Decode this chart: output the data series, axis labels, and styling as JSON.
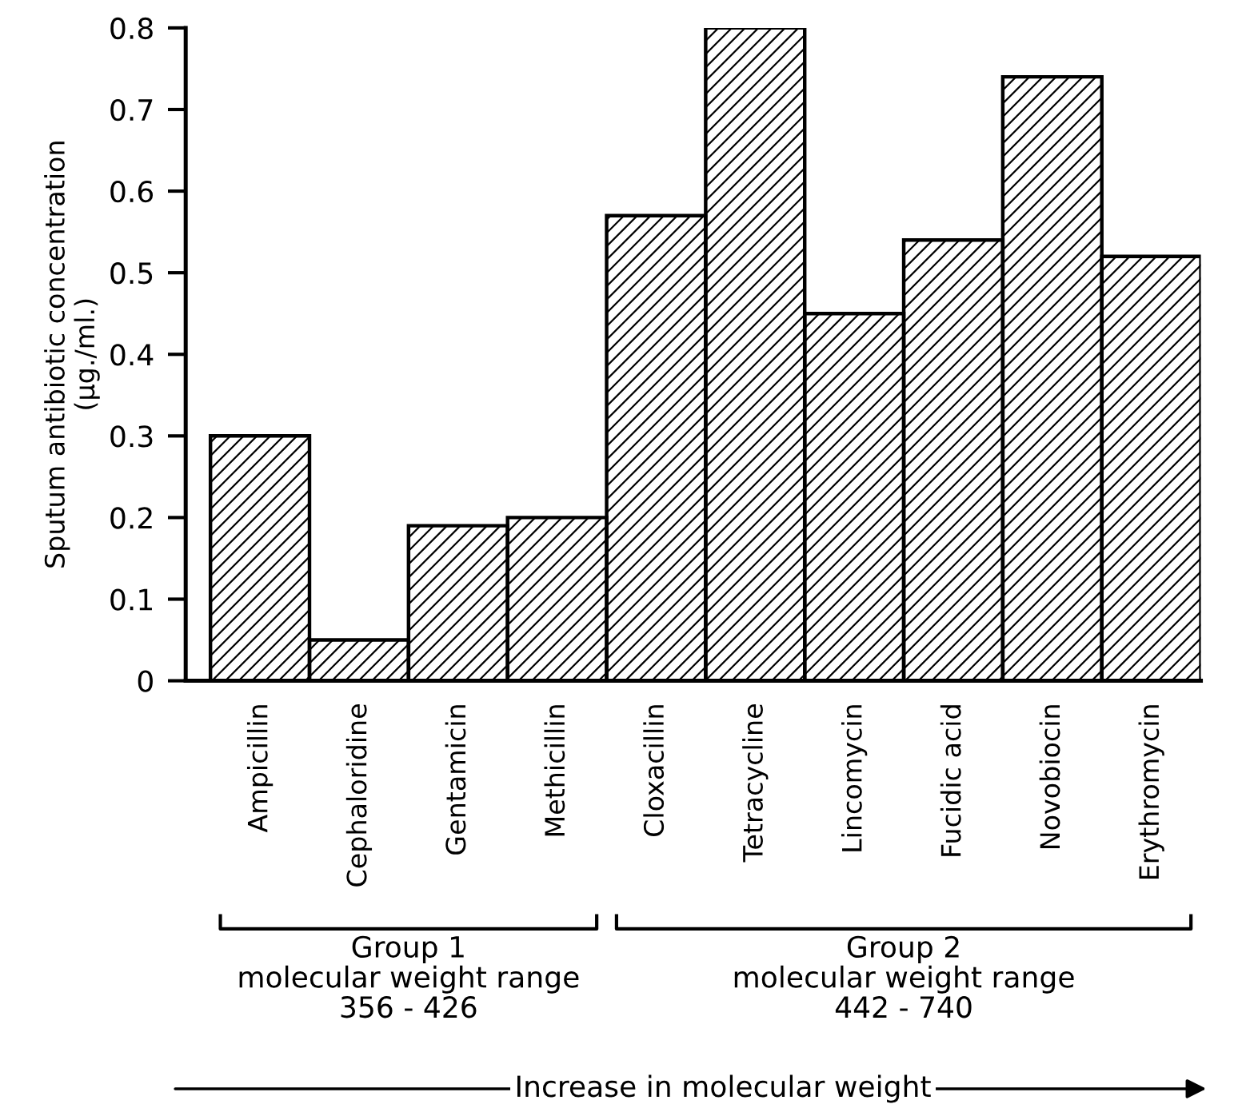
{
  "chart_data": {
    "type": "bar",
    "ylabel": "Sputum antibiotic concentration\n(µg./ml.)",
    "categories": [
      "Ampicillin",
      "Cephaloridine",
      "Gentamicin",
      "Methicillin",
      "Cloxacillin",
      "Tetracycline",
      "Lincomycin",
      "Fucidic acid",
      "Novobiocin",
      "Erythromycin"
    ],
    "values": [
      0.3,
      0.05,
      0.19,
      0.2,
      0.57,
      0.8,
      0.45,
      0.54,
      0.74,
      0.52
    ],
    "color": "#000000",
    "ylim": [
      0,
      0.8
    ],
    "yticks": [
      0,
      0.1,
      0.2,
      0.3,
      0.4,
      0.5,
      0.6,
      0.7,
      0.8
    ],
    "grid": false,
    "annotations": [
      "Group 1\nmolecular weight range\n356 - 426",
      "Group 2\nmolecular weight range\n442 - 740",
      "Increase in molecular weight"
    ]
  }
}
